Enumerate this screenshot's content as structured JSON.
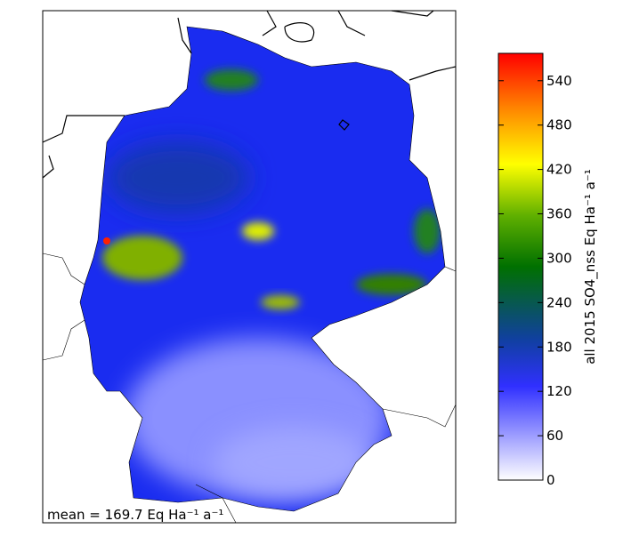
{
  "colorbar": {
    "label": "all 2015 SO4_nss Eq Ha⁻¹ a⁻¹",
    "lim": [
      0,
      577
    ],
    "ticks": [
      0,
      60,
      120,
      180,
      240,
      300,
      360,
      420,
      480,
      540
    ]
  },
  "annotation": "mean = 169.7 Eq Ha⁻¹ a⁻¹"
}
